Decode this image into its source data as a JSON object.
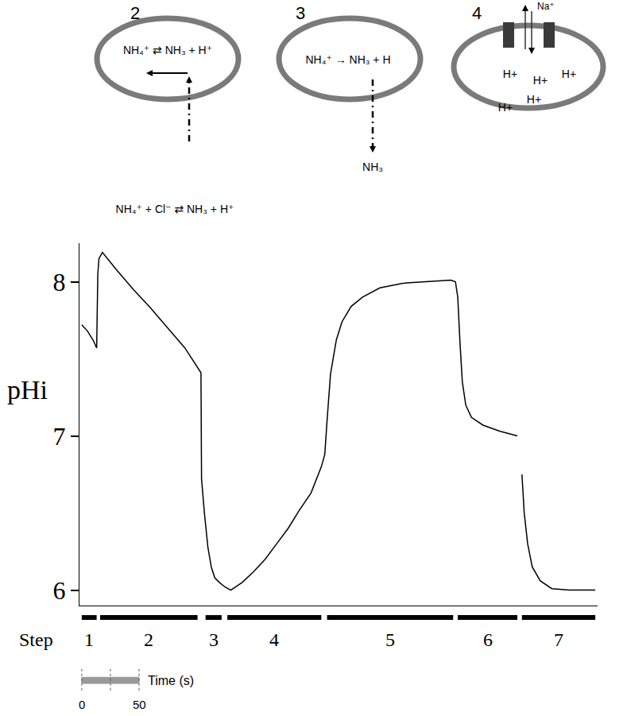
{
  "chart_data": {
    "type": "line",
    "ylabel": "pHi",
    "color": "#000000",
    "x": [
      0,
      5,
      10,
      13,
      14,
      15,
      18,
      30,
      45,
      60,
      75,
      90,
      104,
      104.5,
      107,
      110,
      113,
      116,
      120,
      125,
      130,
      140,
      150,
      160,
      170,
      180,
      190,
      200,
      209,
      212,
      214,
      217,
      222,
      227,
      235,
      245,
      260,
      280,
      300,
      322,
      326,
      328,
      330,
      332,
      335,
      340,
      350,
      365,
      380,
      382,
      384,
      386,
      389,
      393,
      400,
      410,
      425,
      448
    ],
    "values": [
      7.72,
      7.68,
      7.62,
      7.57,
      8.05,
      8.15,
      8.19,
      8.08,
      7.95,
      7.83,
      7.7,
      7.57,
      7.41,
      6.72,
      6.5,
      6.28,
      6.15,
      6.08,
      6.05,
      6.02,
      6.0,
      6.05,
      6.12,
      6.2,
      6.3,
      6.4,
      6.52,
      6.63,
      6.8,
      6.88,
      7.1,
      7.4,
      7.62,
      7.74,
      7.84,
      7.9,
      7.96,
      7.99,
      8.0,
      8.01,
      8.0,
      7.9,
      7.6,
      7.35,
      7.2,
      7.12,
      7.07,
      7.03,
      7.0,
      null,
      6.75,
      6.5,
      6.3,
      6.15,
      6.06,
      6.01,
      6.0,
      6.0
    ],
    "xlim": [
      -2,
      450
    ],
    "ylim": [
      5.9,
      8.25
    ],
    "yticks": [
      6,
      7,
      8
    ],
    "tick_labels": "y",
    "grid": false,
    "steps": {
      "title": "Step",
      "segments": [
        {
          "label": "1",
          "start": 0,
          "end": 13
        },
        {
          "label": "2",
          "start": 16,
          "end": 101
        },
        {
          "label": "3",
          "start": 108,
          "end": 122
        },
        {
          "label": "4",
          "start": 127,
          "end": 209
        },
        {
          "label": "5",
          "start": 214,
          "end": 324
        },
        {
          "label": "6",
          "start": 328,
          "end": 380
        },
        {
          "label": "7",
          "start": 384,
          "end": 448
        }
      ]
    },
    "scale_bar": {
      "title": "Time (s)",
      "start": 0,
      "end": 50,
      "ticks": [
        0,
        25,
        50
      ],
      "labels": [
        0,
        50
      ]
    }
  },
  "diagrams": [
    {
      "label": "2",
      "inside": "NH₄⁺ ⇄ NH₃ + H⁺",
      "outside": "NH₄⁺ + Cl⁻ ⇄ NH₃ + H⁺"
    },
    {
      "label": "3",
      "inside": "NH₄⁺ → NH₃ + H",
      "outside": "NH₃"
    },
    {
      "label": "4",
      "inside": [
        "H+",
        "H+",
        "H+",
        "H+",
        "H+"
      ],
      "channel": "Na⁺"
    }
  ]
}
